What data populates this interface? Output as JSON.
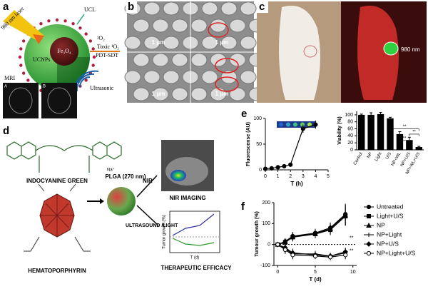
{
  "panel_labels": [
    "a",
    "b",
    "c",
    "d",
    "e",
    "f"
  ],
  "panel_a": {
    "laser": "980 nm laser",
    "ucl": "UCL",
    "ucnps": "UCNPs",
    "core": "Fe₃O₄",
    "singlet": "¹O₂",
    "toxic": "Toxic ¹O₂",
    "therapy": "PDT-SDT",
    "ultrasonic": "Ultrasonic",
    "mri": "MRI",
    "mri_labels": [
      "A",
      "B"
    ]
  },
  "panel_b": {
    "scale_bars": [
      "1 μm",
      "1 μm",
      "1 μm",
      "1 μm"
    ]
  },
  "panel_c": {
    "wavelength": "980 nm"
  },
  "panel_d": {
    "dye": "INDOCYANINE GREEN",
    "porphyrin": "HEMATOPORPHYRIN",
    "counter_ion": "Na⁺",
    "carrier": "PLGA (270 nm)",
    "route_1": "NIR",
    "route_2": "ULTRASOUND /LIGHT",
    "imaging": "NIR IMAGING",
    "efficacy": "THERAPEUTIC EFFICACY",
    "inset_ylabel": "Tumor growth (%)",
    "inset_xlabel": "T (d)"
  },
  "chart_data": [
    {
      "type": "line",
      "xlabel": "T (h)",
      "ylabel": "Fluorescense (AU)",
      "x": [
        0,
        0.5,
        1,
        1.5,
        2,
        3,
        4
      ],
      "values": [
        2,
        3,
        5,
        7,
        10,
        80,
        88
      ],
      "errors": [
        1,
        1,
        1,
        1,
        1,
        8,
        8
      ],
      "color": "#000000",
      "xlim": [
        0,
        5
      ],
      "xticks": [
        0,
        1,
        2,
        3,
        4,
        5
      ],
      "ylim": [
        0,
        100
      ],
      "yticks": [
        0,
        50,
        100
      ]
    },
    {
      "type": "bar",
      "ylabel": "Viability (%)",
      "categories": [
        "Control",
        "NP",
        "Light",
        "U/S",
        "NP+WL",
        "NP+U/S",
        "NP+WL+U/S"
      ],
      "values": [
        100,
        100,
        102,
        90,
        45,
        28,
        8
      ],
      "errors": [
        2,
        6,
        5,
        3,
        7,
        8,
        2
      ],
      "color": "#000000",
      "ylim": [
        0,
        110
      ],
      "yticks": [
        0,
        20,
        40,
        60,
        80,
        100
      ],
      "annotations": [
        "**",
        "**",
        "**"
      ]
    },
    {
      "type": "line",
      "xlabel": "T (d)",
      "ylabel": "Tumour growth (%)",
      "x": [
        0,
        1,
        2,
        5,
        7,
        9
      ],
      "xlim": [
        -0.5,
        10.5
      ],
      "xticks": [
        0,
        5,
        10
      ],
      "ylim": [
        -100,
        200
      ],
      "yticks": [
        -100,
        0,
        100,
        200
      ],
      "annotation": "**",
      "series": [
        {
          "name": "Untreated",
          "color": "#000000",
          "marker": "circle",
          "values": [
            0,
            15,
            40,
            55,
            80,
            145
          ],
          "errors": [
            0,
            15,
            20,
            20,
            25,
            50
          ]
        },
        {
          "name": "Light+U/S",
          "color": "#000000",
          "marker": "square",
          "values": [
            0,
            10,
            35,
            50,
            70,
            135
          ],
          "errors": [
            0,
            15,
            20,
            20,
            25,
            45
          ]
        },
        {
          "name": "NP",
          "color": "#000000",
          "marker": "triangle",
          "values": [
            0,
            12,
            38,
            52,
            75,
            140
          ],
          "errors": [
            0,
            15,
            20,
            20,
            25,
            50
          ]
        },
        {
          "name": "NP+Light",
          "color": "#000000",
          "marker": "cross",
          "values": [
            0,
            -20,
            -45,
            -45,
            -55,
            -40
          ],
          "errors": [
            0,
            20,
            20,
            15,
            15,
            20
          ]
        },
        {
          "name": "NP+U/S",
          "color": "#000000",
          "marker": "diamond",
          "values": [
            0,
            -15,
            -40,
            -50,
            -55,
            -35
          ],
          "errors": [
            0,
            20,
            20,
            15,
            15,
            20
          ]
        },
        {
          "name": "NP+Light+U/S",
          "color": "#000000",
          "marker": "ring",
          "values": [
            0,
            -25,
            -50,
            -55,
            -60,
            -50
          ],
          "errors": [
            0,
            20,
            20,
            15,
            15,
            20
          ]
        }
      ]
    }
  ]
}
